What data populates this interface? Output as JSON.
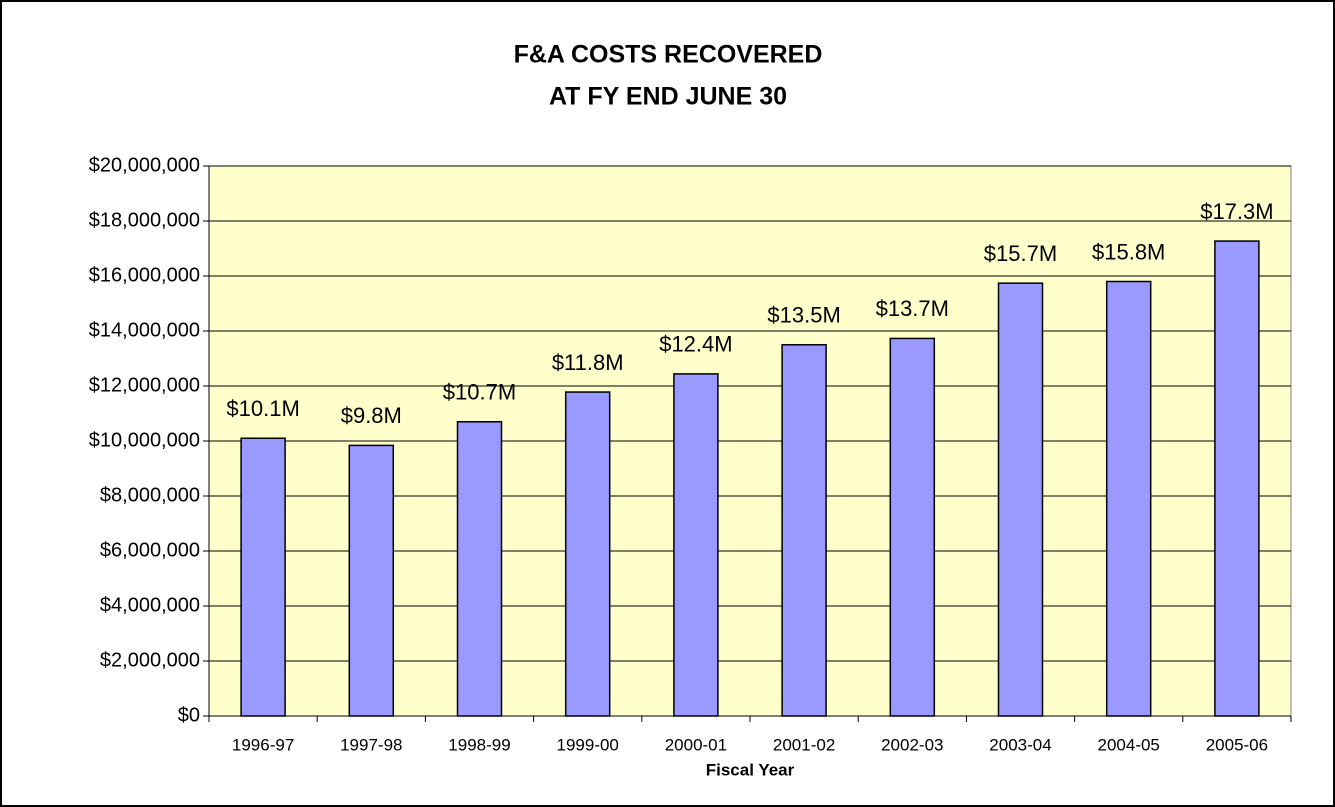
{
  "chart_data": {
    "type": "bar",
    "title": [
      "F&A COSTS RECOVERED",
      "AT FY END JUNE 30"
    ],
    "x_label": "Fiscal Year",
    "categories": [
      "1996-97",
      "1997-98",
      "1998-99",
      "1999-00",
      "2000-01",
      "2001-02",
      "2002-03",
      "2003-04",
      "2004-05",
      "2005-06"
    ],
    "values": [
      10100000,
      9840000,
      10700000,
      11780000,
      12440000,
      13500000,
      13730000,
      15740000,
      15800000,
      17270000
    ],
    "value_labels": [
      "$10.1M",
      "$9.8M",
      "$10.7M",
      "$11.8M",
      "$12.4M",
      "$13.5M",
      "$13.7M",
      "$15.7M",
      "$15.8M",
      "$17.3M"
    ],
    "color": "#9999ff",
    "plot_background": "#ffffcc",
    "ylim": [
      0,
      20000000
    ],
    "yticks": [
      {
        "value": 0,
        "label": "$0"
      },
      {
        "value": 2000000,
        "label": "$2,000,000"
      },
      {
        "value": 4000000,
        "label": "$4,000,000"
      },
      {
        "value": 6000000,
        "label": "$6,000,000"
      },
      {
        "value": 8000000,
        "label": "$8,000,000"
      },
      {
        "value": 10000000,
        "label": "$10,000,000"
      },
      {
        "value": 12000000,
        "label": "$12,000,000"
      },
      {
        "value": 14000000,
        "label": "$14,000,000"
      },
      {
        "value": 16000000,
        "label": "$16,000,000"
      },
      {
        "value": 18000000,
        "label": "$18,000,000"
      },
      {
        "value": 20000000,
        "label": "$20,000,000"
      }
    ],
    "grid": true
  }
}
